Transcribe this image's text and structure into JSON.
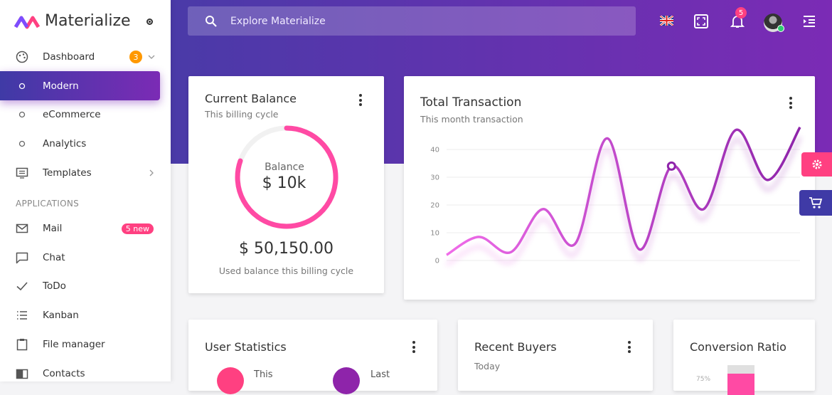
{
  "brand": "Materialize",
  "search_placeholder": "Explore Materialize",
  "notification_count": 5,
  "sidebar": {
    "items": [
      {
        "label": "Dashboard",
        "badge": 3
      },
      {
        "label": "Modern"
      },
      {
        "label": "eCommerce"
      },
      {
        "label": "Analytics"
      },
      {
        "label": "Templates"
      }
    ],
    "section": "APPLICATIONS",
    "apps": [
      {
        "label": "Mail",
        "badge": "5 new"
      },
      {
        "label": "Chat"
      },
      {
        "label": "ToDo"
      },
      {
        "label": "Kanban"
      },
      {
        "label": "File manager"
      },
      {
        "label": "Contacts"
      }
    ]
  },
  "balance_card": {
    "title": "Current Balance",
    "subtitle": "This billing cycle",
    "ring_label": "Balance",
    "ring_value": "$ 10k",
    "amount": "$ 50,150.00",
    "caption": "Used balance this billing cycle"
  },
  "transaction_card": {
    "title": "Total Transaction",
    "subtitle": "This month transaction",
    "chart_data": {
      "type": "line",
      "values": [
        2,
        8.5,
        3,
        18.5,
        6,
        44,
        4,
        34,
        18.5,
        47,
        29,
        48
      ],
      "colors": [
        "#f06ce9",
        "#8e24aa"
      ],
      "ylim": [
        -6,
        50
      ],
      "yticks": [
        0,
        10,
        20,
        30,
        40
      ],
      "grid": true
    }
  },
  "user_stats": {
    "title": "User Statistics",
    "this": "This",
    "last": "Last"
  },
  "recent_buyers": {
    "title": "Recent Buyers",
    "subtitle": "Today"
  },
  "conversion": {
    "title": "Conversion Ratio",
    "tick": "75%"
  }
}
